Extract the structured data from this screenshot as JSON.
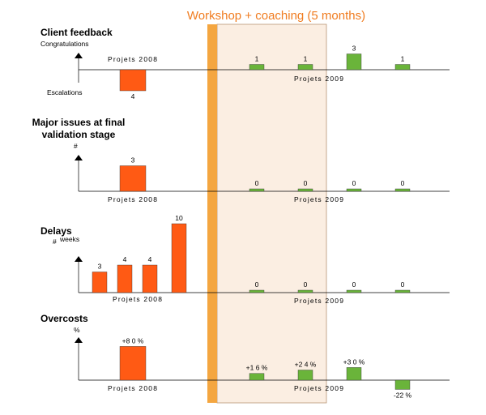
{
  "banner": {
    "label": "Workshop + coaching (5 months)",
    "band_color": "#f4a640",
    "shade_color": "#fbeee2",
    "shade_border": "#b89474"
  },
  "colors": {
    "projets_2008": "#ff5a14",
    "projets_2009": "#6ab43a"
  },
  "group_labels": {
    "g2008": "Projets 2008",
    "g2009": "Projets 2009"
  },
  "chart_data": [
    {
      "type": "bar",
      "title": "Client feedback",
      "label_above": "Congratulations",
      "label_below": "Escalations",
      "series": [
        {
          "name": "Projets 2008",
          "values": [
            -4
          ],
          "labels": [
            "4"
          ]
        },
        {
          "name": "Projets 2009",
          "values": [
            1,
            1,
            3,
            1
          ],
          "labels": [
            "1",
            "1",
            "3",
            "1"
          ]
        }
      ]
    },
    {
      "type": "bar",
      "title": "Major issues at final validation stage",
      "title_lines": [
        "Major issues at final",
        "validation stage"
      ],
      "ylabel": "#",
      "series": [
        {
          "name": "Projets 2008",
          "values": [
            3
          ],
          "labels": [
            "3"
          ]
        },
        {
          "name": "Projets 2009",
          "values": [
            0,
            0,
            0,
            0
          ],
          "labels": [
            "0",
            "0",
            "0",
            "0"
          ]
        }
      ]
    },
    {
      "type": "bar",
      "title": "Delays",
      "ylabel": "#",
      "unit": "weeks",
      "series": [
        {
          "name": "Projets 2008",
          "values": [
            3,
            4,
            4,
            10
          ],
          "labels": [
            "3",
            "4",
            "4",
            "10"
          ]
        },
        {
          "name": "Projets 2009",
          "values": [
            0,
            0,
            0,
            0
          ],
          "labels": [
            "0",
            "0",
            "0",
            "0"
          ]
        }
      ]
    },
    {
      "type": "bar",
      "title": "Overcosts",
      "ylabel": "%",
      "series": [
        {
          "name": "Projets 2008",
          "values": [
            80
          ],
          "labels": [
            "+8 0 %"
          ]
        },
        {
          "name": "Projets 2009",
          "values": [
            16,
            24,
            30,
            -22
          ],
          "labels": [
            "+1 6 %",
            "+2 4 %",
            "+3 0 %",
            "-22 %"
          ]
        }
      ]
    }
  ]
}
